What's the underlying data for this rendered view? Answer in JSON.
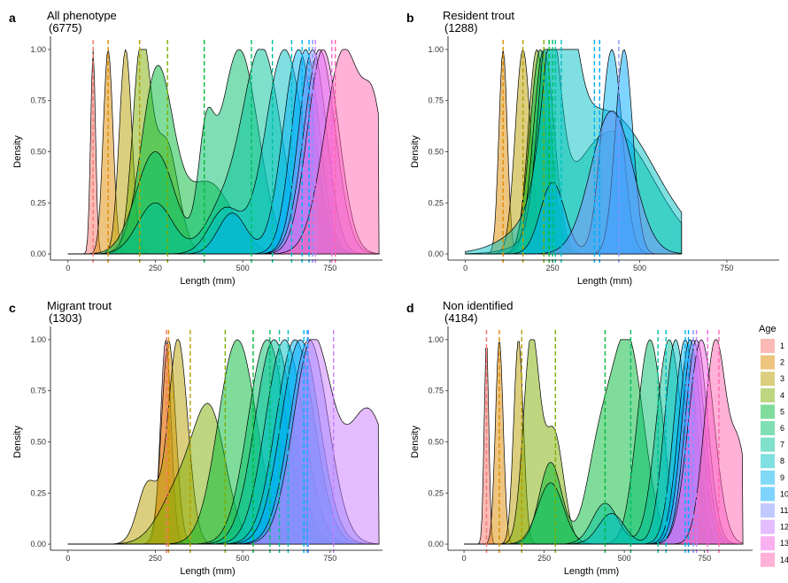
{
  "chart_data": {
    "type": "area",
    "legend": {
      "title": "Age",
      "placement": "right",
      "entries": [
        {
          "label": "1",
          "color": "#F8766D"
        },
        {
          "label": "2",
          "color": "#DE8C00"
        },
        {
          "label": "3",
          "color": "#B79F00"
        },
        {
          "label": "4",
          "color": "#7CAE00"
        },
        {
          "label": "5",
          "color": "#00BA38"
        },
        {
          "label": "6",
          "color": "#00BE67"
        },
        {
          "label": "7",
          "color": "#00C19A"
        },
        {
          "label": "8",
          "color": "#00BFC4"
        },
        {
          "label": "9",
          "color": "#00B4F0"
        },
        {
          "label": "10",
          "color": "#00A9FF"
        },
        {
          "label": "11",
          "color": "#8494FF"
        },
        {
          "label": "12",
          "color": "#C77CFF"
        },
        {
          "label": "13",
          "color": "#F564E3"
        },
        {
          "label": "14",
          "color": "#FF64B0"
        }
      ]
    },
    "panels": [
      {
        "letter": "a",
        "title": "All phenotype",
        "subtitle": "(6775)",
        "xlabel": "Length (mm)",
        "ylabel": "Density",
        "xlim": [
          -50,
          900
        ],
        "ylim": [
          -0.03,
          1.03
        ],
        "xticks": [
          0,
          250,
          500,
          750
        ],
        "yticks": [
          0.0,
          0.25,
          0.5,
          0.75,
          1.0
        ],
        "ytick_labels": [
          "0.00",
          "0.25",
          "0.50",
          "0.75",
          "1.00"
        ],
        "x_end": 890,
        "series": [
          {
            "age": "1",
            "bumps": [
              [
                72,
                7,
                1.0
              ]
            ],
            "mean_line": 72
          },
          {
            "age": "2",
            "bumps": [
              [
                115,
                14,
                1.0
              ]
            ],
            "mean_line": 115
          },
          {
            "age": "3",
            "bumps": [
              [
                165,
                18,
                1.0
              ]
            ],
            "mean_line": 205
          },
          {
            "age": "4",
            "bumps": [
              [
                210,
                25,
                1.0
              ],
              [
                280,
                35,
                0.55
              ]
            ],
            "mean_line": 285
          },
          {
            "age": "5",
            "bumps": [
              [
                255,
                45,
                0.88
              ],
              [
                400,
                70,
                0.35
              ]
            ],
            "mean_line": 390
          },
          {
            "age": "6",
            "bumps": [
              [
                250,
                55,
                0.5
              ],
              [
                395,
                22,
                0.45
              ],
              [
                490,
                55,
                1.0
              ]
            ],
            "mean_line": 525
          },
          {
            "age": "7",
            "bumps": [
              [
                250,
                50,
                0.25
              ],
              [
                440,
                50,
                0.2
              ],
              [
                555,
                55,
                1.0
              ]
            ],
            "mean_line": 585
          },
          {
            "age": "8",
            "bumps": [
              [
                450,
                45,
                0.22
              ],
              [
                620,
                55,
                1.0
              ]
            ],
            "mean_line": 640
          },
          {
            "age": "9",
            "bumps": [
              [
                470,
                40,
                0.2
              ],
              [
                660,
                45,
                1.0
              ]
            ],
            "mean_line": 670
          },
          {
            "age": "10",
            "bumps": [
              [
                680,
                40,
                1.0
              ]
            ],
            "mean_line": 690
          },
          {
            "age": "11",
            "bumps": [
              [
                700,
                40,
                1.0
              ]
            ],
            "mean_line": 700
          },
          {
            "age": "12",
            "bumps": [
              [
                720,
                45,
                1.0
              ]
            ],
            "mean_line": 708
          },
          {
            "age": "13",
            "bumps": [
              [
                730,
                45,
                1.0
              ]
            ],
            "mean_line": 755
          },
          {
            "age": "14",
            "bumps": [
              [
                790,
                55,
                1.0
              ],
              [
                880,
                30,
                0.5
              ]
            ],
            "mean_line": 765
          }
        ]
      },
      {
        "letter": "b",
        "title": "Resident trout",
        "subtitle": "(1288)",
        "xlabel": "Length (mm)",
        "ylabel": "Density",
        "xlim": [
          -50,
          900
        ],
        "ylim": [
          -0.03,
          1.03
        ],
        "xticks": [
          0,
          250,
          500,
          750
        ],
        "yticks": [
          0.0,
          0.25,
          0.5,
          0.75,
          1.0
        ],
        "ytick_labels": [
          "0.00",
          "0.25",
          "0.50",
          "0.75",
          "1.00"
        ],
        "x_end": 620,
        "series": [
          {
            "age": "2",
            "bumps": [
              [
                108,
                12,
                1.0
              ]
            ],
            "mean_line": 108
          },
          {
            "age": "3",
            "bumps": [
              [
                165,
                22,
                1.0
              ]
            ],
            "mean_line": 165
          },
          {
            "age": "4",
            "bumps": [
              [
                205,
                25,
                1.0
              ]
            ],
            "mean_line": 225
          },
          {
            "age": "5",
            "bumps": [
              [
                215,
                30,
                1.0
              ]
            ],
            "mean_line": 240
          },
          {
            "age": "6",
            "bumps": [
              [
                225,
                30,
                1.0
              ]
            ],
            "mean_line": 250
          },
          {
            "age": "7",
            "bumps": [
              [
                240,
                30,
                1.0
              ],
              [
                420,
                120,
                0.6
              ]
            ],
            "mean_line": 258
          },
          {
            "age": "8",
            "bumps": [
              [
                270,
                40,
                1.0
              ],
              [
                400,
                140,
                0.7
              ]
            ],
            "mean_line": 275
          },
          {
            "age": "9",
            "bumps": [
              [
                250,
                35,
                0.35
              ],
              [
                420,
                30,
                1.0
              ]
            ],
            "mean_line": 370
          },
          {
            "age": "10",
            "bumps": [
              [
                455,
                25,
                1.0
              ]
            ],
            "mean_line": 385
          },
          {
            "age": "11",
            "bumps": [
              [
                420,
                60,
                0.7
              ]
            ],
            "mean_line": 440
          }
        ]
      },
      {
        "letter": "c",
        "title": "Migrant trout",
        "subtitle": "(1303)",
        "xlabel": "Length (mm)",
        "ylabel": "Density",
        "xlim": [
          -50,
          900
        ],
        "ylim": [
          -0.03,
          1.03
        ],
        "xticks": [
          0,
          250,
          500,
          750
        ],
        "yticks": [
          0.0,
          0.25,
          0.5,
          0.75,
          1.0
        ],
        "ytick_labels": [
          "0.00",
          "0.25",
          "0.50",
          "0.75",
          "1.00"
        ],
        "x_end": 890,
        "series": [
          {
            "age": "1",
            "bumps": [
              [
                280,
                15,
                1.0
              ]
            ],
            "mean_line": 282
          },
          {
            "age": "2",
            "bumps": [
              [
                288,
                20,
                1.0
              ]
            ],
            "mean_line": 288
          },
          {
            "age": "3",
            "bumps": [
              [
                315,
                28,
                1.0
              ],
              [
                230,
                30,
                0.3
              ]
            ],
            "mean_line": 350
          },
          {
            "age": "4",
            "bumps": [
              [
                410,
                45,
                0.55
              ],
              [
                330,
                60,
                0.3
              ]
            ],
            "mean_line": 450
          },
          {
            "age": "5",
            "bumps": [
              [
                485,
                55,
                1.0
              ]
            ],
            "mean_line": 530
          },
          {
            "age": "6",
            "bumps": [
              [
                570,
                55,
                1.0
              ]
            ],
            "mean_line": 578
          },
          {
            "age": "7",
            "bumps": [
              [
                590,
                55,
                1.0
              ]
            ],
            "mean_line": 605
          },
          {
            "age": "8",
            "bumps": [
              [
                620,
                55,
                1.0
              ]
            ],
            "mean_line": 630
          },
          {
            "age": "9",
            "bumps": [
              [
                650,
                55,
                1.0
              ]
            ],
            "mean_line": 675
          },
          {
            "age": "10",
            "bumps": [
              [
                665,
                55,
                1.0
              ]
            ],
            "mean_line": 685
          },
          {
            "age": "11",
            "bumps": [
              [
                690,
                55,
                1.0
              ]
            ],
            "mean_line": 688
          },
          {
            "age": "12",
            "bumps": [
              [
                700,
                55,
                1.0
              ],
              [
                860,
                60,
                0.65
              ]
            ],
            "mean_line": 760
          }
        ]
      },
      {
        "letter": "d",
        "title": "Non identified",
        "subtitle": "(4184)",
        "xlabel": "Length (mm)",
        "ylabel": "Density",
        "xlim": [
          -50,
          900
        ],
        "ylim": [
          -0.03,
          1.03
        ],
        "xticks": [
          0,
          250,
          500,
          750
        ],
        "yticks": [
          0.0,
          0.25,
          0.5,
          0.75,
          1.0
        ],
        "ytick_labels": [
          "0.00",
          "0.25",
          "0.50",
          "0.75",
          "1.00"
        ],
        "x_end": 870,
        "series": [
          {
            "age": "1",
            "bumps": [
              [
                70,
                7,
                1.0
              ]
            ],
            "mean_line": 70
          },
          {
            "age": "2",
            "bumps": [
              [
                110,
                12,
                1.0
              ]
            ],
            "mean_line": 110
          },
          {
            "age": "3",
            "bumps": [
              [
                170,
                15,
                1.0
              ]
            ],
            "mean_line": 180
          },
          {
            "age": "4",
            "bumps": [
              [
                210,
                25,
                1.0
              ],
              [
                280,
                30,
                0.55
              ]
            ],
            "mean_line": 285
          },
          {
            "age": "5",
            "bumps": [
              [
                270,
                35,
                0.4
              ],
              [
                420,
                40,
                0.4
              ],
              [
                510,
                50,
                1.0
              ]
            ],
            "mean_line": 440
          },
          {
            "age": "6",
            "bumps": [
              [
                270,
                40,
                0.3
              ],
              [
                580,
                40,
                1.0
              ]
            ],
            "mean_line": 520
          },
          {
            "age": "7",
            "bumps": [
              [
                440,
                40,
                0.2
              ],
              [
                640,
                40,
                1.0
              ]
            ],
            "mean_line": 605
          },
          {
            "age": "8",
            "bumps": [
              [
                460,
                40,
                0.15
              ],
              [
                660,
                35,
                1.0
              ]
            ],
            "mean_line": 630
          },
          {
            "age": "9",
            "bumps": [
              [
                690,
                35,
                1.0
              ]
            ],
            "mean_line": 690
          },
          {
            "age": "10",
            "bumps": [
              [
                705,
                35,
                1.0
              ]
            ],
            "mean_line": 700
          },
          {
            "age": "11",
            "bumps": [
              [
                715,
                35,
                1.0
              ]
            ],
            "mean_line": 715
          },
          {
            "age": "12",
            "bumps": [
              [
                725,
                35,
                1.0
              ]
            ],
            "mean_line": 725
          },
          {
            "age": "13",
            "bumps": [
              [
                740,
                40,
                1.0
              ]
            ],
            "mean_line": 760
          },
          {
            "age": "14",
            "bumps": [
              [
                785,
                35,
                1.0
              ],
              [
                860,
                25,
                0.4
              ]
            ],
            "mean_line": 795
          }
        ]
      }
    ]
  }
}
